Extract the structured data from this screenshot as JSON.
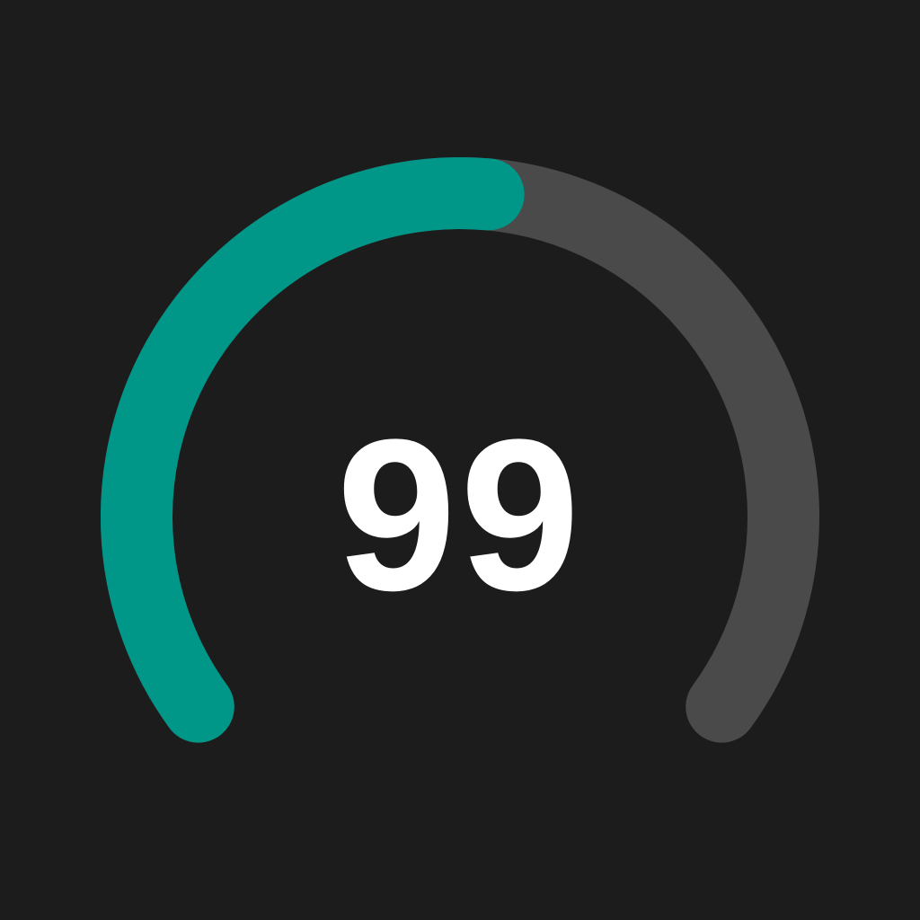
{
  "gauge": {
    "value_label": "99",
    "fill_fraction": 0.52,
    "colors": {
      "background": "#1c1c1c",
      "track": "#4a4a4a",
      "fill": "#009688",
      "text": "#ffffff"
    }
  }
}
